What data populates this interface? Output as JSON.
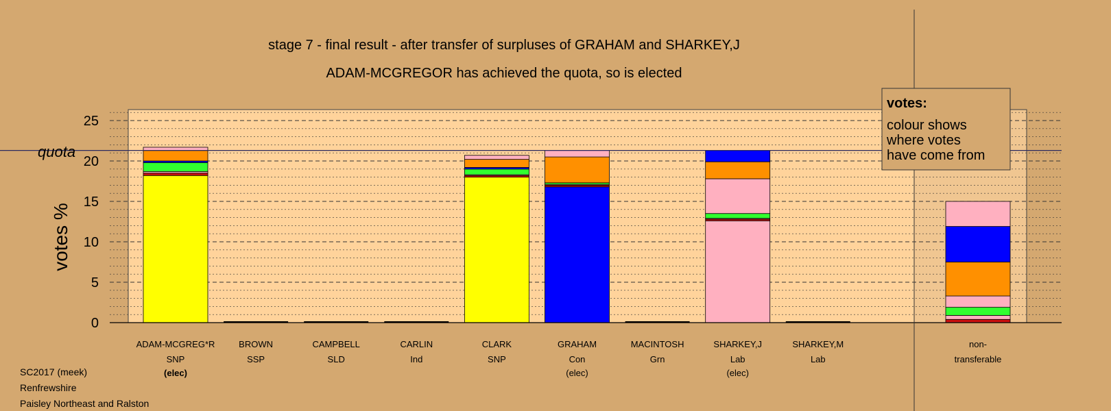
{
  "colors": {
    "background": "#d4a870",
    "plot_area": "#ffd39b",
    "SNP": "#ffff00",
    "Con": "#0000ff",
    "Lab": "#ffb0c0",
    "LD": "#ff9000",
    "Grn": "#30ff30",
    "other": "#cc1010"
  },
  "chart_data": {
    "type": "bar",
    "stacked": true,
    "title": "stage 7 - final result - after transfer of surpluses of GRAHAM and SHARKEY,J",
    "subtitle": "ADAM-MCGREGOR has achieved the quota, so is elected",
    "ylabel": "votes %",
    "ylim": [
      0,
      26
    ],
    "yticks": [
      0,
      5,
      10,
      15,
      20,
      25
    ],
    "grid": true,
    "quota": 21.3,
    "quota_label": "quota",
    "legend": {
      "title": "votes:",
      "lines": [
        "colour shows",
        "where votes",
        "have come from"
      ],
      "position": "top-right"
    },
    "candidates": [
      {
        "name": "ADAM-MCGREG*R",
        "party": "SNP",
        "status": "(elec)",
        "segments": [
          {
            "source": "SNP",
            "value": 18.2
          },
          {
            "source": "other",
            "value": 0.3
          },
          {
            "source": "Lab",
            "value": 0.2
          },
          {
            "source": "Grn",
            "value": 1.1
          },
          {
            "source": "Con",
            "value": 0.2
          },
          {
            "source": "LD",
            "value": 1.3
          },
          {
            "source": "Lab",
            "value": 0.4
          }
        ]
      },
      {
        "name": "BROWN",
        "party": "SSP",
        "status": "",
        "segments": []
      },
      {
        "name": "CAMPBELL",
        "party": "SLD",
        "status": "",
        "segments": []
      },
      {
        "name": "CARLIN",
        "party": "Ind",
        "status": "",
        "segments": []
      },
      {
        "name": "CLARK",
        "party": "SNP",
        "status": "",
        "segments": [
          {
            "source": "SNP",
            "value": 18.0
          },
          {
            "source": "other",
            "value": 0.2
          },
          {
            "source": "Lab",
            "value": 0.1
          },
          {
            "source": "Grn",
            "value": 0.7
          },
          {
            "source": "Con",
            "value": 0.2
          },
          {
            "source": "LD",
            "value": 1.0
          },
          {
            "source": "Lab",
            "value": 0.5
          }
        ]
      },
      {
        "name": "GRAHAM",
        "party": "Con",
        "status": "(elec)",
        "segments": [
          {
            "source": "Con",
            "value": 16.8
          },
          {
            "source": "other",
            "value": 0.2
          },
          {
            "source": "Lab",
            "value": 0.1
          },
          {
            "source": "Grn",
            "value": 0.2
          },
          {
            "source": "LD",
            "value": 3.2
          },
          {
            "source": "Lab",
            "value": 0.8
          }
        ]
      },
      {
        "name": "MACINTOSH",
        "party": "Grn",
        "status": "",
        "segments": []
      },
      {
        "name": "SHARKEY,J",
        "party": "Lab",
        "status": "(elec)",
        "segments": [
          {
            "source": "Lab",
            "value": 12.6
          },
          {
            "source": "other",
            "value": 0.2
          },
          {
            "source": "Lab",
            "value": 0.1
          },
          {
            "source": "Grn",
            "value": 0.6
          },
          {
            "source": "Lab",
            "value": 4.3
          },
          {
            "source": "LD",
            "value": 2.1
          },
          {
            "source": "Con",
            "value": 1.4
          }
        ]
      },
      {
        "name": "SHARKEY,M",
        "party": "Lab",
        "status": "",
        "segments": []
      }
    ],
    "nontransferable": {
      "label_line1": "non-",
      "label_line2": "transferable",
      "segments": [
        {
          "source": "other",
          "value": 0.4
        },
        {
          "source": "Lab",
          "value": 0.5
        },
        {
          "source": "Grn",
          "value": 1.0
        },
        {
          "source": "Lab",
          "value": 1.4
        },
        {
          "source": "LD",
          "value": 4.2
        },
        {
          "source": "Con",
          "value": 4.4
        },
        {
          "source": "Lab",
          "value": 3.1
        }
      ]
    }
  },
  "footer": {
    "line1": "SC2017 (meek)",
    "line2": "Renfrewshire",
    "line3": "Paisley Northeast and Ralston"
  }
}
